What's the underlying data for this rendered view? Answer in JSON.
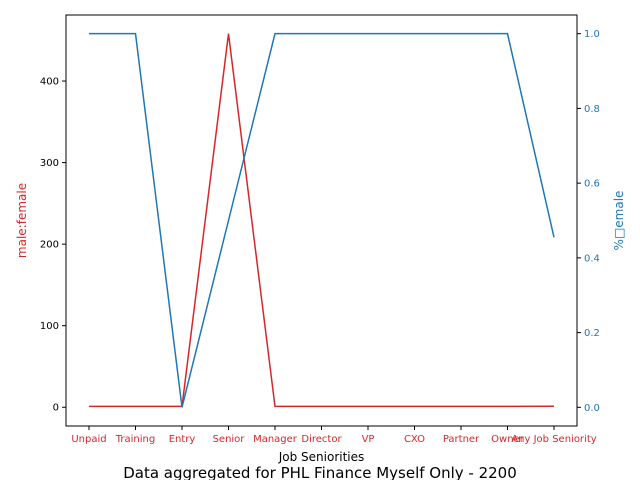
{
  "chart_data": {
    "type": "line",
    "caption": "Data aggregated for PHL Finance Myself Only - 2200",
    "xlabel": "Job Seniorities",
    "categories": [
      "Unpaid",
      "Training",
      "Entry",
      "Senior",
      "Manager",
      "Director",
      "VP",
      "CXO",
      "Partner",
      "Owner",
      "Any Job Seniority"
    ],
    "series": [
      {
        "name": "male:female",
        "axis": "left",
        "color": "#d62728",
        "values": [
          1,
          1,
          1,
          458,
          1,
          1,
          1,
          1,
          1,
          1,
          1.2
        ]
      },
      {
        "name": "% female",
        "axis": "right",
        "color": "#1f77b4",
        "values": [
          1.0,
          1.0,
          0.0,
          0.5,
          1.0,
          1.0,
          1.0,
          1.0,
          1.0,
          1.0,
          0.455
        ]
      }
    ],
    "y_left": {
      "label": "male:female",
      "color": "#d62728",
      "ylim": [
        -23,
        481
      ],
      "ticks": [
        0,
        100,
        200,
        300,
        400
      ]
    },
    "y_right": {
      "label": "%□emale",
      "color": "#1f77b4",
      "ylim": [
        -0.05,
        1.05
      ],
      "ticks": [
        0.0,
        0.2,
        0.4,
        0.6,
        0.8,
        1.0
      ],
      "tick_labels": [
        "0.0",
        "0.2",
        "0.4",
        "0.6",
        "0.8",
        "1.0"
      ]
    },
    "xtick_color": "#d62728"
  }
}
